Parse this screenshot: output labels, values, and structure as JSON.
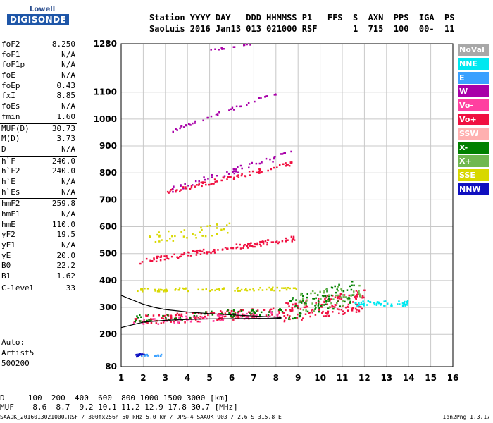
{
  "logo": {
    "top": "Lowell",
    "main": "DIGISONDE"
  },
  "header": {
    "line1": "Station YYYY DAY   DDD HHMMSS P1   FFS  S  AXN  PPS  IGA  PS",
    "line2": "SaoLuis 2016 Jan13 013 021000 RSF       1  715  100  00-  11"
  },
  "params": [
    {
      "k": "foF2",
      "v": "8.250"
    },
    {
      "k": "foF1",
      "v": "N/A"
    },
    {
      "k": "foF1p",
      "v": "N/A"
    },
    {
      "k": "foE",
      "v": "N/A"
    },
    {
      "k": "foEp",
      "v": "0.43"
    },
    {
      "k": "fxI",
      "v": "8.85"
    },
    {
      "k": "foEs",
      "v": "N/A"
    },
    {
      "k": "fmin",
      "v": "1.60"
    },
    {
      "k": "MUF(D)",
      "v": "30.73"
    },
    {
      "k": "M(D)",
      "v": "3.73"
    },
    {
      "k": "D",
      "v": "N/A"
    },
    {
      "k": "h`F",
      "v": "240.0"
    },
    {
      "k": "h`F2",
      "v": "240.0"
    },
    {
      "k": "h`E",
      "v": "N/A"
    },
    {
      "k": "h`Es",
      "v": "N/A"
    },
    {
      "k": "hmF2",
      "v": "259.8"
    },
    {
      "k": "hmF1",
      "v": "N/A"
    },
    {
      "k": "hmE",
      "v": "110.0"
    },
    {
      "k": "yF2",
      "v": "19.5"
    },
    {
      "k": "yF1",
      "v": "N/A"
    },
    {
      "k": "yE",
      "v": "20.0"
    },
    {
      "k": "B0",
      "v": "22.2"
    },
    {
      "k": "B1",
      "v": "1.62"
    },
    {
      "k": "C-level",
      "v": "33"
    }
  ],
  "auto": {
    "line1": "Auto:",
    "line2": "Artist5",
    "line3": "500200"
  },
  "legend": [
    {
      "name": "NoVal",
      "color": "#a8a8a8"
    },
    {
      "name": "NNE",
      "color": "#00e8f0"
    },
    {
      "name": "E",
      "color": "#3aa0ff"
    },
    {
      "name": "W",
      "color": "#a800a8"
    },
    {
      "name": "Vo-",
      "color": "#ff40a0"
    },
    {
      "name": "Vo+",
      "color": "#f01040"
    },
    {
      "name": "SSW",
      "color": "#ffb0b0"
    },
    {
      "name": "X-",
      "color": "#008000"
    },
    {
      "name": "X+",
      "color": "#70b850"
    },
    {
      "name": "SSE",
      "color": "#d8d800"
    },
    {
      "name": "NNW",
      "color": "#1010c0"
    }
  ],
  "dtable": {
    "d_row": "D     100  200  400  600  800 1000 1500 3000 [km]",
    "muf_row": "MUF    8.6  8.7  9.2 10.1 11.2 12.9 17.8 30.7 [MHz]"
  },
  "footer": {
    "text": "SAAOK_2016013021000.RSF / 300fx256h 50 kHz 5.0 km / DPS-4 SAAOK 903 / 2.6 S 315.8 E",
    "version": "Ion2Png 1.3.17"
  },
  "chart_data": {
    "type": "scatter",
    "title": "",
    "xlabel": "",
    "ylabel": "",
    "xlim": [
      1,
      16
    ],
    "ylim": [
      80,
      1280
    ],
    "x_ticks": [
      1,
      2,
      3,
      4,
      5,
      6,
      7,
      8,
      9,
      10,
      11,
      12,
      13,
      14,
      15,
      16
    ],
    "y_ticks": [
      80,
      200,
      300,
      400,
      500,
      600,
      700,
      800,
      900,
      1000,
      1100,
      1280
    ],
    "grid": true,
    "legend_placement": "right",
    "profile_curves": [
      {
        "name": "",
        "color": "#000000",
        "points": [
          [
            1,
            225
          ],
          [
            1.5,
            235
          ],
          [
            2,
            245
          ],
          [
            3,
            252
          ],
          [
            4,
            255
          ],
          [
            5,
            257
          ],
          [
            6,
            258
          ],
          [
            7,
            259
          ],
          [
            8,
            259
          ],
          [
            8.25,
            260
          ]
        ]
      },
      {
        "name": "",
        "color": "#000000",
        "points": [
          [
            1,
            345
          ],
          [
            1.5,
            328
          ],
          [
            2,
            312
          ],
          [
            2.5,
            300
          ],
          [
            3,
            292
          ],
          [
            4,
            283
          ],
          [
            5,
            277
          ],
          [
            6,
            272
          ],
          [
            7,
            268
          ],
          [
            8.25,
            262
          ]
        ]
      }
    ],
    "traces": [
      {
        "color": "#f01040",
        "x_from": 1.5,
        "x_to": 8.3,
        "y_from": 255,
        "y_to": 285,
        "density": 140,
        "spread": 18
      },
      {
        "color": "#008000",
        "x_from": 1.5,
        "x_to": 8.3,
        "y_from": 260,
        "y_to": 290,
        "density": 60,
        "spread": 14
      },
      {
        "color": "#ff40a0",
        "x_from": 1.5,
        "x_to": 8.3,
        "y_from": 248,
        "y_to": 278,
        "density": 60,
        "spread": 12
      },
      {
        "color": "#f01040",
        "x_from": 8.3,
        "x_to": 12,
        "y_from": 285,
        "y_to": 330,
        "density": 140,
        "spread": 40
      },
      {
        "color": "#008000",
        "x_from": 8.5,
        "x_to": 11.5,
        "y_from": 300,
        "y_to": 360,
        "density": 80,
        "spread": 45
      },
      {
        "color": "#70b850",
        "x_from": 9,
        "x_to": 12,
        "y_from": 320,
        "y_to": 360,
        "density": 50,
        "spread": 40
      },
      {
        "color": "#00e8f0",
        "x_from": 11.5,
        "x_to": 14,
        "y_from": 318,
        "y_to": 318,
        "density": 50,
        "spread": 10
      },
      {
        "color": "#d8d800",
        "x_from": 1.6,
        "x_to": 9,
        "y_from": 368,
        "y_to": 372,
        "density": 80,
        "spread": 6
      },
      {
        "color": "#f01040",
        "x_from": 1.8,
        "x_to": 8.8,
        "y_from": 475,
        "y_to": 560,
        "density": 120,
        "spread": 10
      },
      {
        "color": "#d8d800",
        "x_from": 2,
        "x_to": 6,
        "y_from": 555,
        "y_to": 600,
        "density": 40,
        "spread": 20
      },
      {
        "color": "#f01040",
        "x_from": 3,
        "x_to": 8.8,
        "y_from": 730,
        "y_to": 840,
        "density": 80,
        "spread": 8
      },
      {
        "color": "#a800a8",
        "x_from": 3.2,
        "x_to": 8.8,
        "y_from": 740,
        "y_to": 880,
        "density": 50,
        "spread": 12
      },
      {
        "color": "#a800a8",
        "x_from": 3.3,
        "x_to": 8,
        "y_from": 960,
        "y_to": 1100,
        "density": 45,
        "spread": 6
      },
      {
        "color": "#a800a8",
        "x_from": 5,
        "x_to": 7,
        "y_from": 1260,
        "y_to": 1285,
        "density": 12,
        "spread": 4
      },
      {
        "color": "#3aa0ff",
        "x_from": 1.6,
        "x_to": 2.8,
        "y_from": 125,
        "y_to": 125,
        "density": 18,
        "spread": 4
      },
      {
        "color": "#1010c0",
        "x_from": 1.6,
        "x_to": 2.0,
        "y_from": 125,
        "y_to": 125,
        "density": 12,
        "spread": 6
      }
    ]
  }
}
